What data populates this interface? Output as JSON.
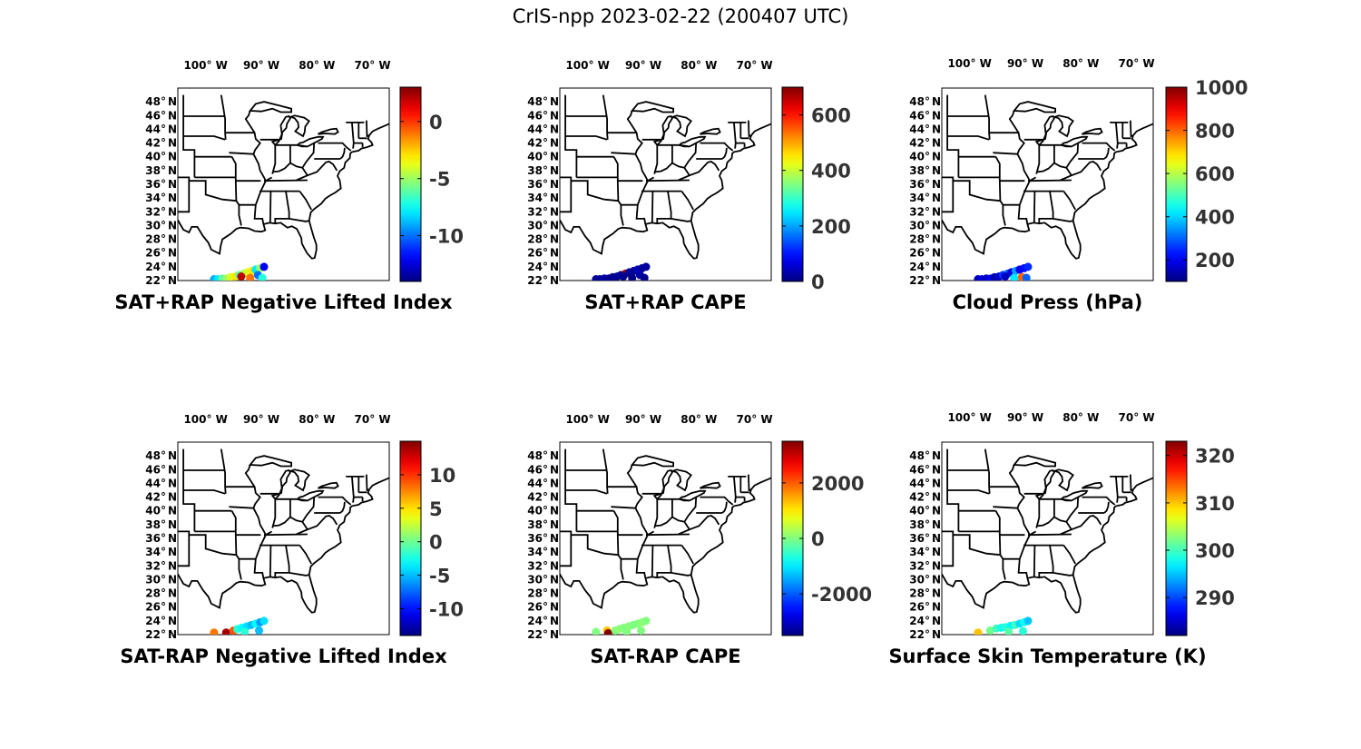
{
  "figure_title": "CrIS-npp 2023-02-22 (200407 UTC)",
  "lon_labels": [
    "100° W",
    "90° W",
    "80° W",
    "70° W"
  ],
  "lat_labels": [
    "48° N",
    "46° N",
    "44° N",
    "42° N",
    "40° N",
    "38° N",
    "36° N",
    "34° N",
    "32° N",
    "30° N",
    "28° N",
    "26° N",
    "24° N",
    "22° N"
  ],
  "colormap": "jet",
  "panels": [
    {
      "title": "SAT+RAP Negative Lifted Index",
      "colorbar": {
        "min": -14,
        "max": 3,
        "ticks": [
          0,
          -5,
          -10
        ]
      },
      "points": [
        {
          "lon": -98.5,
          "lat": 22.2,
          "value": -9
        },
        {
          "lon": -97.8,
          "lat": 22.2,
          "value": -8
        },
        {
          "lon": -97.0,
          "lat": 22.3,
          "value": -6
        },
        {
          "lon": -96.2,
          "lat": 22.3,
          "value": -5
        },
        {
          "lon": -95.5,
          "lat": 22.5,
          "value": -4
        },
        {
          "lon": -94.7,
          "lat": 22.6,
          "value": -3
        },
        {
          "lon": -94.0,
          "lat": 22.8,
          "value": -6
        },
        {
          "lon": -93.2,
          "lat": 23.0,
          "value": -5
        },
        {
          "lon": -92.5,
          "lat": 23.2,
          "value": -4
        },
        {
          "lon": -91.7,
          "lat": 23.4,
          "value": -3
        },
        {
          "lon": -91.0,
          "lat": 23.6,
          "value": -8
        },
        {
          "lon": -90.2,
          "lat": 23.8,
          "value": -5
        },
        {
          "lon": -89.5,
          "lat": 24.0,
          "value": -12
        },
        {
          "lon": -93.6,
          "lat": 22.6,
          "value": 2
        },
        {
          "lon": -92.0,
          "lat": 22.4,
          "value": -1
        },
        {
          "lon": -90.6,
          "lat": 22.8,
          "value": -10
        },
        {
          "lon": -89.8,
          "lat": 22.4,
          "value": -7
        }
      ]
    },
    {
      "title": "SAT+RAP CAPE",
      "colorbar": {
        "min": 0,
        "max": 700,
        "ticks": [
          600,
          400,
          200,
          0
        ]
      },
      "points": [
        {
          "lon": -98.5,
          "lat": 22.2,
          "value": 20
        },
        {
          "lon": -97.8,
          "lat": 22.2,
          "value": 10
        },
        {
          "lon": -97.0,
          "lat": 22.3,
          "value": 30
        },
        {
          "lon": -96.2,
          "lat": 22.3,
          "value": 5
        },
        {
          "lon": -95.5,
          "lat": 22.5,
          "value": 15
        },
        {
          "lon": -94.7,
          "lat": 22.6,
          "value": 10
        },
        {
          "lon": -94.0,
          "lat": 22.8,
          "value": 20
        },
        {
          "lon": -93.2,
          "lat": 23.0,
          "value": 680
        },
        {
          "lon": -92.5,
          "lat": 23.2,
          "value": 25
        },
        {
          "lon": -91.7,
          "lat": 23.4,
          "value": 10
        },
        {
          "lon": -91.0,
          "lat": 23.6,
          "value": 40
        },
        {
          "lon": -90.2,
          "lat": 23.8,
          "value": 15
        },
        {
          "lon": -89.5,
          "lat": 24.0,
          "value": 20
        },
        {
          "lon": -93.6,
          "lat": 22.6,
          "value": 10
        },
        {
          "lon": -92.0,
          "lat": 22.4,
          "value": 5
        },
        {
          "lon": -90.6,
          "lat": 22.8,
          "value": 30
        },
        {
          "lon": -89.8,
          "lat": 22.4,
          "value": 10
        }
      ]
    },
    {
      "title": "Cloud Press (hPa)",
      "colorbar": {
        "min": 100,
        "max": 1000,
        "ticks": [
          1000,
          800,
          600,
          400,
          200
        ]
      },
      "points": [
        {
          "lon": -98.5,
          "lat": 22.2,
          "value": 150
        },
        {
          "lon": -97.8,
          "lat": 22.2,
          "value": 180
        },
        {
          "lon": -97.0,
          "lat": 22.3,
          "value": 160
        },
        {
          "lon": -96.2,
          "lat": 22.3,
          "value": 200
        },
        {
          "lon": -95.5,
          "lat": 22.5,
          "value": 140
        },
        {
          "lon": -94.7,
          "lat": 22.6,
          "value": 170
        },
        {
          "lon": -94.0,
          "lat": 22.8,
          "value": 260
        },
        {
          "lon": -93.2,
          "lat": 23.0,
          "value": 300
        },
        {
          "lon": -92.5,
          "lat": 23.2,
          "value": 180
        },
        {
          "lon": -91.7,
          "lat": 23.4,
          "value": 350
        },
        {
          "lon": -91.0,
          "lat": 23.6,
          "value": 200
        },
        {
          "lon": -90.2,
          "lat": 23.8,
          "value": 220
        },
        {
          "lon": -89.5,
          "lat": 24.0,
          "value": 250
        },
        {
          "lon": -93.6,
          "lat": 22.6,
          "value": 160
        },
        {
          "lon": -92.0,
          "lat": 22.4,
          "value": 420
        },
        {
          "lon": -90.6,
          "lat": 22.5,
          "value": 800
        },
        {
          "lon": -89.8,
          "lat": 22.4,
          "value": 300
        }
      ]
    },
    {
      "title": "SAT-RAP Negative Lifted Index",
      "colorbar": {
        "min": -14,
        "max": 15,
        "ticks": [
          10,
          5,
          0,
          -5,
          -10
        ]
      },
      "points": [
        {
          "lon": -98.5,
          "lat": 22.3,
          "value": 8
        },
        {
          "lon": -96.3,
          "lat": 22.3,
          "value": 14
        },
        {
          "lon": -95.0,
          "lat": 22.6,
          "value": 9
        },
        {
          "lon": -94.3,
          "lat": 22.8,
          "value": -2
        },
        {
          "lon": -93.5,
          "lat": 23.0,
          "value": -3
        },
        {
          "lon": -92.6,
          "lat": 23.2,
          "value": -4
        },
        {
          "lon": -91.8,
          "lat": 23.4,
          "value": -5
        },
        {
          "lon": -91.0,
          "lat": 23.6,
          "value": -3
        },
        {
          "lon": -90.2,
          "lat": 23.8,
          "value": -6
        },
        {
          "lon": -89.5,
          "lat": 24.0,
          "value": -4
        },
        {
          "lon": -93.0,
          "lat": 22.4,
          "value": -2
        },
        {
          "lon": -90.4,
          "lat": 22.6,
          "value": -5
        }
      ]
    },
    {
      "title": "SAT-RAP CAPE",
      "colorbar": {
        "min": -3500,
        "max": 3500,
        "ticks": [
          2000,
          0,
          -2000
        ]
      },
      "points": [
        {
          "lon": -98.5,
          "lat": 22.4,
          "value": 0
        },
        {
          "lon": -96.5,
          "lat": 22.6,
          "value": 1300
        },
        {
          "lon": -96.3,
          "lat": 22.2,
          "value": 3500
        },
        {
          "lon": -95.0,
          "lat": 22.6,
          "value": 0
        },
        {
          "lon": -94.3,
          "lat": 22.8,
          "value": 100
        },
        {
          "lon": -93.5,
          "lat": 23.0,
          "value": 0
        },
        {
          "lon": -92.6,
          "lat": 23.2,
          "value": 50
        },
        {
          "lon": -91.8,
          "lat": 23.4,
          "value": 0
        },
        {
          "lon": -91.0,
          "lat": 23.6,
          "value": 0
        },
        {
          "lon": -90.2,
          "lat": 23.8,
          "value": 100
        },
        {
          "lon": -89.5,
          "lat": 24.0,
          "value": 0
        },
        {
          "lon": -93.0,
          "lat": 22.4,
          "value": 0
        },
        {
          "lon": -90.4,
          "lat": 22.6,
          "value": 0
        }
      ]
    },
    {
      "title": "Surface Skin Temperature (K)",
      "colorbar": {
        "min": 282,
        "max": 323,
        "ticks": [
          320,
          310,
          300,
          290
        ]
      },
      "points": [
        {
          "lon": -98.5,
          "lat": 22.3,
          "value": 310
        },
        {
          "lon": -96.3,
          "lat": 22.6,
          "value": 302
        },
        {
          "lon": -95.2,
          "lat": 22.9,
          "value": 300
        },
        {
          "lon": -94.3,
          "lat": 23.0,
          "value": 298
        },
        {
          "lon": -93.5,
          "lat": 23.1,
          "value": 299
        },
        {
          "lon": -92.6,
          "lat": 23.3,
          "value": 297
        },
        {
          "lon": -91.8,
          "lat": 23.4,
          "value": 300
        },
        {
          "lon": -91.0,
          "lat": 23.6,
          "value": 296
        },
        {
          "lon": -90.2,
          "lat": 23.8,
          "value": 298
        },
        {
          "lon": -89.5,
          "lat": 24.0,
          "value": 295
        },
        {
          "lon": -93.0,
          "lat": 22.4,
          "value": 301
        },
        {
          "lon": -90.4,
          "lat": 22.5,
          "value": 299
        }
      ]
    }
  ]
}
